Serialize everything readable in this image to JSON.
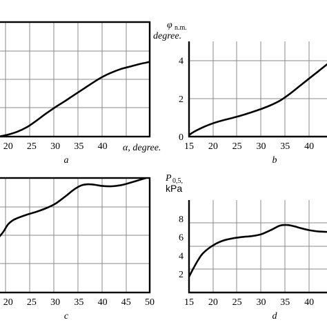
{
  "chart_data": [
    {
      "type": "line",
      "panel_label": "a",
      "xlabel": "α, degree.",
      "ylabel": "",
      "xlim": [
        18,
        50
      ],
      "ylim": [
        0,
        4.6
      ],
      "x_ticks": [
        "20",
        "25",
        "30",
        "35",
        "40"
      ],
      "y_ticks": [],
      "grid": true,
      "x": [
        18,
        20,
        22,
        24,
        26,
        28,
        30,
        32,
        34,
        36,
        38,
        40,
        42,
        44,
        46,
        48,
        50
      ],
      "y": [
        0.0,
        0.08,
        0.2,
        0.38,
        0.64,
        0.92,
        1.18,
        1.42,
        1.67,
        1.92,
        2.17,
        2.4,
        2.58,
        2.72,
        2.82,
        2.92,
        3.0
      ]
    },
    {
      "type": "line",
      "panel_label": "b",
      "xlabel": "",
      "ylabel": "φn.m.",
      "ylabel_lines": [
        "φ",
        "n.m.",
        "degree."
      ],
      "xlim": [
        15,
        44
      ],
      "ylim": [
        0,
        5
      ],
      "x_ticks": [
        "15",
        "20",
        "25",
        "30",
        "35",
        "40"
      ],
      "y_ticks": [
        "0",
        "2",
        "4"
      ],
      "grid": true,
      "x": [
        15,
        16,
        18,
        20,
        22,
        24,
        26,
        28,
        30,
        32,
        34,
        36,
        38,
        40,
        42,
        44
      ],
      "y": [
        0.08,
        0.25,
        0.5,
        0.7,
        0.85,
        0.98,
        1.12,
        1.28,
        1.45,
        1.65,
        1.9,
        2.25,
        2.65,
        3.05,
        3.45,
        3.85
      ]
    },
    {
      "type": "line",
      "panel_label": "c",
      "xlabel": "",
      "ylabel": "",
      "xlim": [
        18,
        50
      ],
      "ylim": [
        0,
        10
      ],
      "x_ticks": [
        "20",
        "25",
        "30",
        "35",
        "40",
        "45",
        "50"
      ],
      "y_ticks": [],
      "grid": true,
      "x": [
        18,
        19,
        20,
        21,
        22,
        24,
        26,
        28,
        30,
        32,
        34,
        35.5,
        37,
        38.5,
        40,
        42,
        44,
        46,
        48,
        50
      ],
      "y": [
        4.8,
        5.3,
        5.95,
        6.3,
        6.5,
        6.8,
        7.05,
        7.35,
        7.75,
        8.35,
        9.0,
        9.35,
        9.45,
        9.4,
        9.3,
        9.28,
        9.38,
        9.6,
        9.85,
        10.1
      ]
    },
    {
      "type": "line",
      "panel_label": "d",
      "xlabel": "",
      "ylabel": "P0,5, kPa",
      "ylabel_lines": [
        "P",
        "0,5,",
        "kPa"
      ],
      "xlim": [
        15,
        44
      ],
      "ylim": [
        0,
        10
      ],
      "x_ticks": [
        "15",
        "20",
        "25",
        "30",
        "35",
        "40"
      ],
      "y_ticks": [
        "2",
        "4",
        "6",
        "8"
      ],
      "grid": true,
      "x": [
        15,
        16,
        17,
        18,
        20,
        22,
        24,
        26,
        28,
        30,
        32,
        34,
        35.5,
        37,
        38,
        40,
        42,
        44
      ],
      "y": [
        1.7,
        2.7,
        3.6,
        4.3,
        5.1,
        5.6,
        5.85,
        6.0,
        6.1,
        6.3,
        6.75,
        7.25,
        7.3,
        7.15,
        7.0,
        6.75,
        6.6,
        6.55
      ]
    }
  ]
}
